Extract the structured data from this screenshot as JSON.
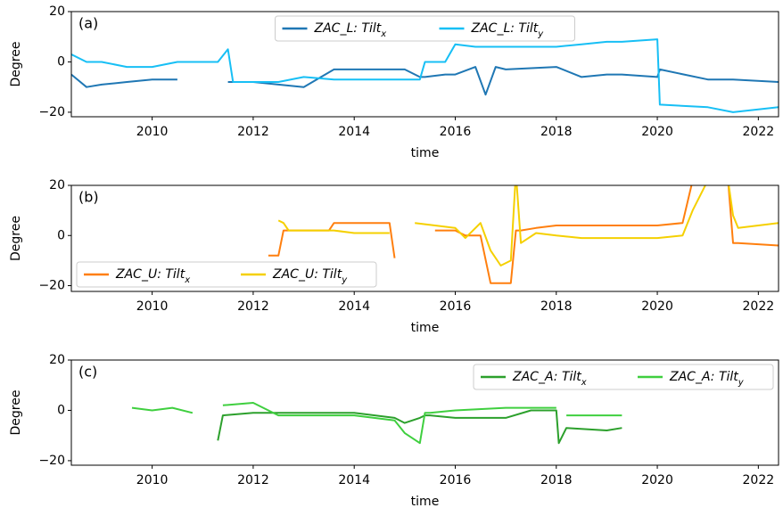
{
  "chart_data": [
    {
      "type": "line",
      "panel_label": "(a)",
      "xlabel": "time",
      "ylabel": "Degree",
      "legend": "upper center",
      "xlim": [
        2008.4,
        2022.4
      ],
      "xticks": [
        2010,
        2012,
        2014,
        2016,
        2018,
        2020,
        2022
      ],
      "ylim": [
        -21.8,
        20
      ],
      "yticks": [
        {
          "value": -20,
          "label": "−20"
        },
        0,
        20
      ],
      "x": [
        2008.4,
        2008.7,
        2009.0,
        2009.5,
        2010.0,
        2010.5,
        2011.0,
        2011.3,
        2011.5,
        2011.6,
        2012.0,
        2012.5,
        2013.0,
        2013.6,
        2014.0,
        2015.0,
        2015.3,
        2015.4,
        2015.8,
        2016.0,
        2016.4,
        2016.6,
        2016.8,
        2017.0,
        2018.0,
        2018.5,
        2019.0,
        2019.3,
        2020.0,
        2020.05,
        2021.0,
        2021.5,
        2022.4
      ],
      "series": [
        {
          "name": "ZAC_L: Tiltx",
          "color": "#1f77b4",
          "values": [
            -5,
            -10,
            -9,
            -8,
            -7,
            -7,
            null,
            null,
            -8,
            -8,
            -8,
            -9,
            -10,
            -3,
            -3,
            -3,
            -6,
            -6,
            -5,
            -5,
            -2,
            -13,
            -2,
            -3,
            -2,
            -6,
            -5,
            -5,
            -6,
            -3,
            -7,
            -7,
            -8
          ]
        },
        {
          "name": "ZAC_L: Tilty",
          "color": "#17bff5",
          "values": [
            3,
            0,
            0,
            -2,
            -2,
            0,
            0,
            0,
            5,
            -8,
            -8,
            -8,
            -6,
            -7,
            -7,
            -7,
            -7,
            0,
            0,
            7,
            6,
            6,
            6,
            6,
            6,
            7,
            8,
            8,
            9,
            -17,
            -18,
            -20,
            -18
          ]
        }
      ]
    },
    {
      "type": "line",
      "panel_label": "(b)",
      "xlabel": "time",
      "ylabel": "Degree",
      "legend": "lower left",
      "xlim": [
        2008.4,
        2022.4
      ],
      "xticks": [
        2010,
        2012,
        2014,
        2016,
        2018,
        2020,
        2022
      ],
      "ylim": [
        -22.3,
        20
      ],
      "yticks": [
        {
          "value": -20,
          "label": "−20"
        },
        0,
        20
      ],
      "x": [
        2012.3,
        2012.5,
        2012.6,
        2012.7,
        2013.5,
        2013.6,
        2014.0,
        2014.7,
        2014.8,
        2015.2,
        2015.6,
        2016.0,
        2016.2,
        2016.5,
        2016.7,
        2016.9,
        2017.1,
        2017.2,
        2017.3,
        2017.6,
        2018.0,
        2018.5,
        2019.0,
        2020.0,
        2020.5,
        2020.7,
        2021.0,
        2021.4,
        2021.5,
        2021.6,
        2022.4
      ],
      "series": [
        {
          "name": "ZAC_U: Tiltx",
          "color": "#ff7f0e",
          "values": [
            -8,
            -8,
            2,
            2,
            2,
            5,
            5,
            5,
            -9,
            null,
            2,
            2,
            0,
            0,
            -19,
            -19,
            -19,
            2,
            2,
            3,
            4,
            4,
            4,
            4,
            5,
            22,
            22,
            22,
            -3,
            -3,
            -4
          ]
        },
        {
          "name": "ZAC_U: Tilty",
          "color": "#f5d000",
          "values": [
            null,
            6,
            5,
            2,
            2,
            2,
            1,
            1,
            null,
            5,
            4,
            3,
            -1,
            5,
            -6,
            -12,
            -10,
            25,
            -3,
            1,
            0,
            -1,
            -1,
            -1,
            0,
            10,
            22,
            22,
            8,
            3,
            5
          ]
        }
      ]
    },
    {
      "type": "line",
      "panel_label": "(c)",
      "xlabel": "time",
      "ylabel": "Degree",
      "legend": "upper right",
      "xlim": [
        2008.4,
        2022.4
      ],
      "xticks": [
        2010,
        2012,
        2014,
        2016,
        2018,
        2020,
        2022
      ],
      "ylim": [
        -21.8,
        20
      ],
      "yticks": [
        {
          "value": -20,
          "label": "−20"
        },
        0,
        20
      ],
      "x": [
        2009.6,
        2010.0,
        2010.4,
        2010.8,
        2011.3,
        2011.4,
        2012.0,
        2012.5,
        2013.0,
        2014.0,
        2014.8,
        2015.0,
        2015.3,
        2015.4,
        2015.5,
        2016.0,
        2017.0,
        2017.5,
        2018.0,
        2018.05,
        2018.2,
        2019.0,
        2019.3
      ],
      "series": [
        {
          "name": "ZAC_A: Tiltx",
          "color": "#2ca02c",
          "values": [
            null,
            null,
            null,
            null,
            -12,
            -2,
            -1,
            -1,
            -1,
            -1,
            -3,
            -5,
            -3,
            -2,
            -2,
            -3,
            -3,
            0,
            0,
            -13,
            -7,
            -8,
            -7
          ]
        },
        {
          "name": "ZAC_A: Tilty",
          "color": "#3fcf3f",
          "values": [
            1,
            0,
            1,
            -1,
            null,
            2,
            3,
            -2,
            -2,
            -2,
            -4,
            -9,
            -13,
            -1,
            -1,
            0,
            1,
            1,
            1,
            null,
            -2,
            -2,
            -2
          ]
        }
      ]
    }
  ]
}
